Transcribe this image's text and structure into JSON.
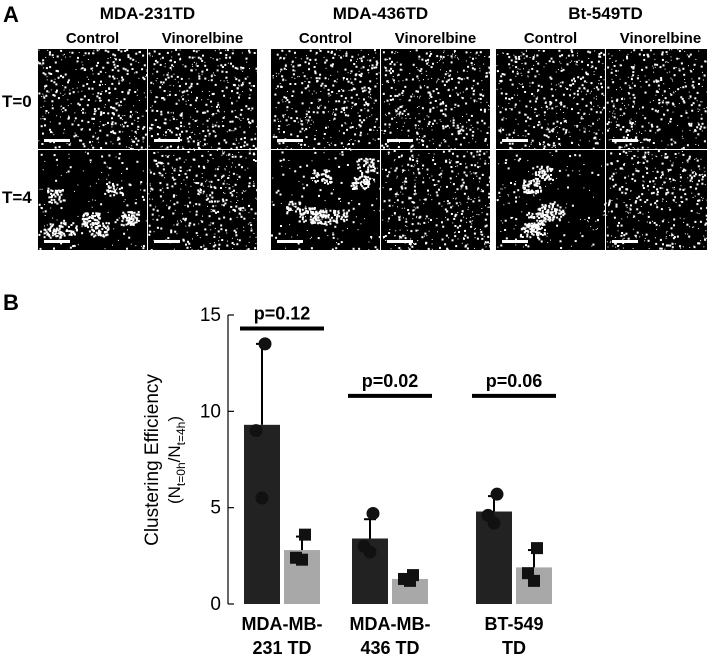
{
  "panel_a": {
    "letter": "A",
    "row_labels": [
      "T=0",
      "T=4"
    ],
    "cell_lines": [
      {
        "name": "MDA-231TD",
        "conditions": [
          "Control",
          "Vinorelbine"
        ]
      },
      {
        "name": "MDA-436TD",
        "conditions": [
          "Control",
          "Vinorelbine"
        ]
      },
      {
        "name": "Bt-549TD",
        "conditions": [
          "Control",
          "Vinorelbine"
        ]
      }
    ]
  },
  "panel_b": {
    "letter": "B"
  },
  "chart_data": {
    "type": "bar",
    "categories": [
      "MDA-MB-\n231 TD",
      "MDA-MB-\n436 TD",
      "BT-549\nTD"
    ],
    "ylabel_main": "Clustering Efficiency",
    "ylabel_sub": "(N",
    "ylabel_sub1": "t=0h",
    "ylabel_mid": "/N",
    "ylabel_sub2": "t=4h",
    "ylabel_end": ")",
    "ylim": [
      0,
      15
    ],
    "yticks": [
      0,
      5,
      10,
      15
    ],
    "series": [
      {
        "values": [
          9.3,
          3.4,
          4.8
        ],
        "color": "#222222",
        "marker": "circle",
        "points": [
          [
            13.5,
            9.0,
            5.5
          ],
          [
            4.7,
            3.0,
            2.7
          ],
          [
            5.7,
            4.6,
            4.2
          ]
        ],
        "errors": [
          4.2,
          1.0,
          0.8
        ]
      },
      {
        "values": [
          2.8,
          1.3,
          1.9
        ],
        "color": "#a8a8a8",
        "marker": "square",
        "points": [
          [
            3.6,
            2.4,
            2.3
          ],
          [
            1.5,
            1.3,
            1.2
          ],
          [
            2.9,
            1.6,
            1.2
          ]
        ],
        "errors": [
          0.7,
          0.15,
          0.9
        ]
      }
    ],
    "annotations": [
      "p=0.12",
      "p=0.02",
      "p=0.06"
    ],
    "annotation_levels": [
      14.3,
      10.8,
      10.8
    ]
  }
}
